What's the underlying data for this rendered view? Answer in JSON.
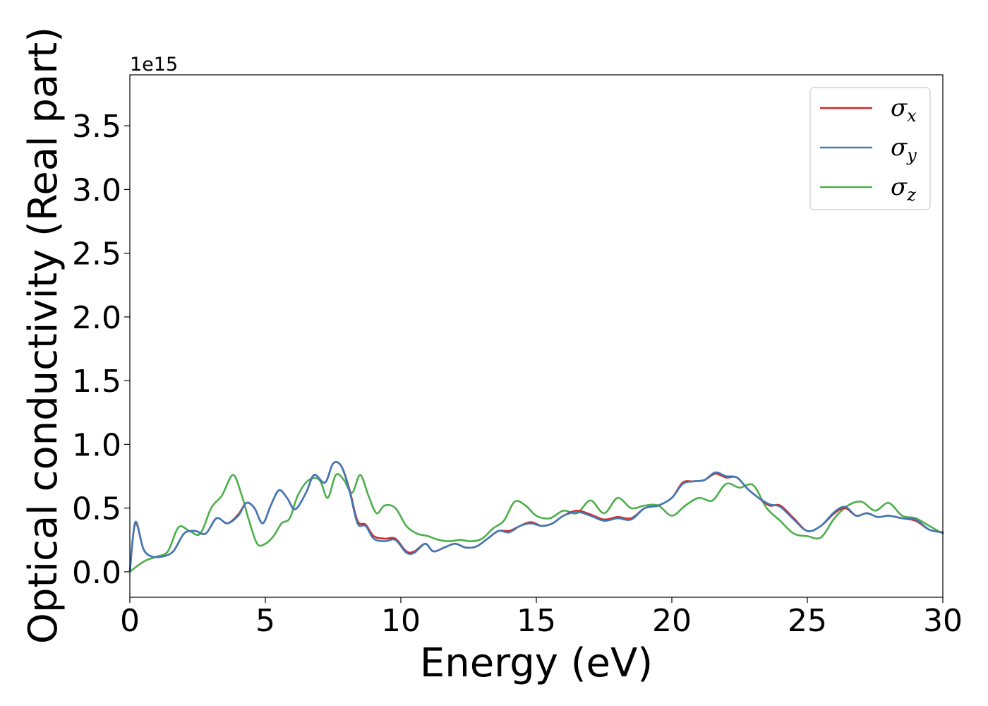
{
  "chart_data": {
    "type": "line",
    "title": "",
    "xlabel": "Energy (eV)",
    "ylabel": "Optical conductivity (Real part)",
    "y_offset_text": "1e15",
    "xlim": [
      0,
      30
    ],
    "ylim": [
      -0.2,
      3.9
    ],
    "xticks": [
      0,
      5,
      10,
      15,
      20,
      25,
      30
    ],
    "xtick_labels": [
      "0",
      "5",
      "10",
      "15",
      "20",
      "25",
      "30"
    ],
    "yticks": [
      0.0,
      0.5,
      1.0,
      1.5,
      2.0,
      2.5,
      3.0,
      3.5
    ],
    "ytick_labels": [
      "0.0",
      "0.5",
      "1.0",
      "1.5",
      "2.0",
      "2.5",
      "3.0",
      "3.5"
    ],
    "grid": false,
    "legend_position": "top-right",
    "series": [
      {
        "name": "σx",
        "symbol": "σ",
        "subscript": "x",
        "color": "#d62728",
        "x": [
          0,
          0.2,
          0.5,
          0.8,
          1.2,
          1.6,
          2.0,
          2.4,
          2.8,
          3.2,
          3.6,
          4.0,
          4.3,
          4.6,
          4.9,
          5.2,
          5.5,
          5.8,
          6.1,
          6.5,
          6.8,
          7.2,
          7.5,
          7.8,
          8.1,
          8.4,
          8.7,
          9.0,
          9.4,
          9.8,
          10.2,
          10.5,
          10.9,
          11.2,
          11.6,
          12.0,
          12.4,
          12.8,
          13.2,
          13.6,
          14.0,
          14.4,
          14.8,
          15.2,
          15.6,
          16.0,
          16.5,
          17.0,
          17.5,
          18.0,
          18.5,
          19.0,
          19.5,
          20.0,
          20.4,
          20.8,
          21.2,
          21.6,
          22.0,
          22.4,
          22.8,
          23.2,
          23.6,
          24.0,
          24.5,
          25.0,
          25.5,
          26.0,
          26.4,
          26.8,
          27.2,
          27.6,
          28.0,
          28.5,
          29.0,
          29.5,
          30.0
        ],
        "y": [
          0.0,
          0.38,
          0.18,
          0.12,
          0.12,
          0.16,
          0.3,
          0.32,
          0.3,
          0.42,
          0.38,
          0.45,
          0.54,
          0.5,
          0.38,
          0.52,
          0.64,
          0.58,
          0.49,
          0.62,
          0.76,
          0.7,
          0.85,
          0.83,
          0.65,
          0.4,
          0.37,
          0.28,
          0.26,
          0.26,
          0.16,
          0.16,
          0.22,
          0.16,
          0.19,
          0.22,
          0.19,
          0.2,
          0.26,
          0.32,
          0.32,
          0.36,
          0.39,
          0.36,
          0.38,
          0.44,
          0.48,
          0.45,
          0.41,
          0.43,
          0.42,
          0.5,
          0.52,
          0.58,
          0.7,
          0.71,
          0.72,
          0.77,
          0.74,
          0.74,
          0.65,
          0.58,
          0.52,
          0.52,
          0.42,
          0.32,
          0.36,
          0.46,
          0.5,
          0.44,
          0.46,
          0.43,
          0.44,
          0.42,
          0.4,
          0.33,
          0.31
        ]
      },
      {
        "name": "σy",
        "symbol": "σ",
        "subscript": "y",
        "color": "#3f7ab6",
        "x": [
          0,
          0.2,
          0.5,
          0.8,
          1.2,
          1.6,
          2.0,
          2.4,
          2.8,
          3.2,
          3.6,
          4.0,
          4.3,
          4.6,
          4.9,
          5.2,
          5.5,
          5.8,
          6.1,
          6.5,
          6.8,
          7.2,
          7.5,
          7.8,
          8.1,
          8.4,
          8.7,
          9.0,
          9.4,
          9.8,
          10.2,
          10.5,
          10.9,
          11.2,
          11.6,
          12.0,
          12.4,
          12.8,
          13.2,
          13.6,
          14.0,
          14.4,
          14.8,
          15.2,
          15.6,
          16.0,
          16.5,
          17.0,
          17.5,
          18.0,
          18.5,
          19.0,
          19.5,
          20.0,
          20.4,
          20.8,
          21.2,
          21.6,
          22.0,
          22.4,
          22.8,
          23.2,
          23.6,
          24.0,
          24.5,
          25.0,
          25.5,
          26.0,
          26.4,
          26.8,
          27.2,
          27.6,
          28.0,
          28.5,
          29.0,
          29.5,
          30.0
        ],
        "y": [
          0.0,
          0.39,
          0.18,
          0.12,
          0.12,
          0.16,
          0.3,
          0.32,
          0.3,
          0.42,
          0.38,
          0.44,
          0.54,
          0.5,
          0.38,
          0.52,
          0.64,
          0.58,
          0.49,
          0.62,
          0.76,
          0.7,
          0.85,
          0.83,
          0.64,
          0.38,
          0.36,
          0.26,
          0.24,
          0.25,
          0.15,
          0.15,
          0.22,
          0.16,
          0.19,
          0.22,
          0.19,
          0.2,
          0.26,
          0.32,
          0.31,
          0.36,
          0.38,
          0.36,
          0.38,
          0.44,
          0.47,
          0.44,
          0.4,
          0.42,
          0.41,
          0.5,
          0.52,
          0.58,
          0.69,
          0.71,
          0.72,
          0.78,
          0.75,
          0.74,
          0.65,
          0.58,
          0.53,
          0.51,
          0.41,
          0.32,
          0.36,
          0.47,
          0.51,
          0.44,
          0.46,
          0.43,
          0.44,
          0.42,
          0.41,
          0.33,
          0.31
        ]
      },
      {
        "name": "σz",
        "symbol": "σ",
        "subscript": "z",
        "color": "#4daf4a",
        "x": [
          0,
          0.3,
          0.6,
          1.0,
          1.4,
          1.8,
          2.2,
          2.6,
          3.0,
          3.4,
          3.8,
          4.1,
          4.4,
          4.7,
          5.0,
          5.3,
          5.6,
          5.9,
          6.2,
          6.6,
          7.0,
          7.3,
          7.6,
          7.9,
          8.2,
          8.5,
          8.8,
          9.1,
          9.4,
          9.8,
          10.2,
          10.6,
          11.0,
          11.4,
          11.8,
          12.2,
          12.6,
          13.0,
          13.4,
          13.8,
          14.2,
          14.6,
          15.0,
          15.5,
          16.0,
          16.5,
          17.0,
          17.5,
          18.0,
          18.5,
          19.0,
          19.5,
          20.0,
          20.5,
          21.0,
          21.5,
          22.0,
          22.5,
          23.0,
          23.5,
          24.0,
          24.5,
          25.0,
          25.5,
          26.0,
          26.5,
          27.0,
          27.5,
          28.0,
          28.5,
          29.0,
          29.5,
          30.0
        ],
        "y": [
          0.0,
          0.05,
          0.09,
          0.12,
          0.16,
          0.35,
          0.32,
          0.3,
          0.5,
          0.6,
          0.76,
          0.62,
          0.4,
          0.22,
          0.22,
          0.28,
          0.38,
          0.42,
          0.6,
          0.72,
          0.72,
          0.58,
          0.76,
          0.72,
          0.62,
          0.76,
          0.6,
          0.46,
          0.52,
          0.5,
          0.36,
          0.3,
          0.28,
          0.25,
          0.24,
          0.25,
          0.24,
          0.26,
          0.34,
          0.4,
          0.55,
          0.52,
          0.44,
          0.42,
          0.48,
          0.46,
          0.56,
          0.46,
          0.58,
          0.5,
          0.52,
          0.52,
          0.44,
          0.52,
          0.58,
          0.56,
          0.69,
          0.66,
          0.68,
          0.5,
          0.4,
          0.3,
          0.28,
          0.27,
          0.42,
          0.52,
          0.55,
          0.48,
          0.54,
          0.44,
          0.42,
          0.36,
          0.3
        ]
      }
    ]
  }
}
